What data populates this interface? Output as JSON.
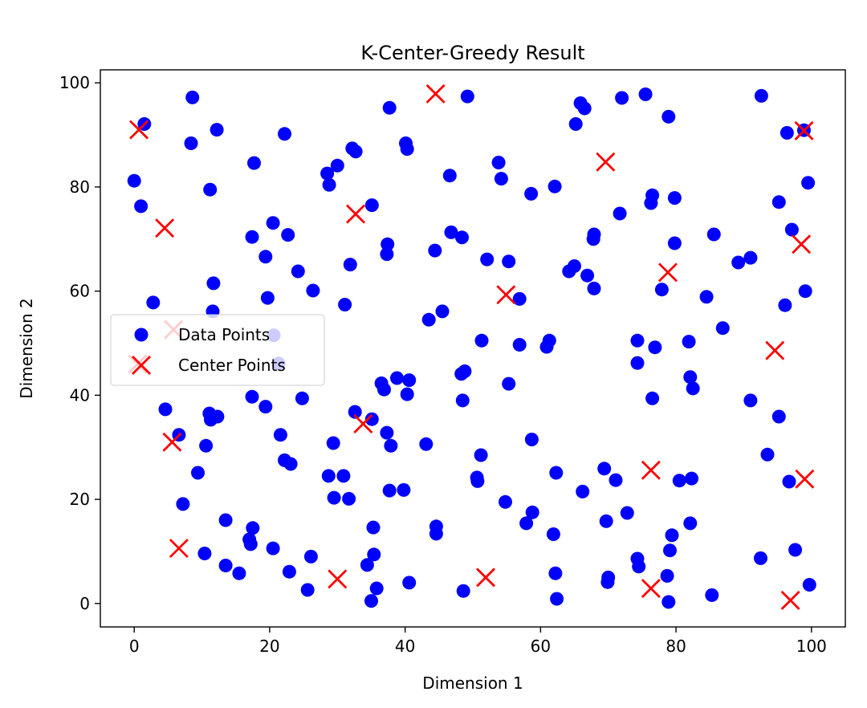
{
  "chart_data": {
    "type": "scatter",
    "title": "K-Center-Greedy Result",
    "xlabel": "Dimension 1",
    "ylabel": "Dimension 2",
    "xlim": [
      -5,
      105
    ],
    "ylim": [
      -4.5,
      102.5
    ],
    "xticks": [
      0,
      20,
      40,
      60,
      80,
      100
    ],
    "yticks": [
      0,
      20,
      40,
      60,
      80,
      100
    ],
    "grid": false,
    "legend": {
      "placement": "center-left",
      "entries": [
        "Data Points",
        "Center Points"
      ]
    },
    "series": [
      {
        "name": "Data Points",
        "marker": "circle",
        "color": "#0000ff",
        "points": [
          [
            0,
            81.2
          ],
          [
            1,
            76.3
          ],
          [
            1.5,
            92.1
          ],
          [
            8.6,
            97.2
          ],
          [
            8.4,
            88.4
          ],
          [
            12.2,
            91
          ],
          [
            11.2,
            79.5
          ],
          [
            2.8,
            57.8
          ],
          [
            11.7,
            61.5
          ],
          [
            11.6,
            56.1
          ],
          [
            17.7,
            84.6
          ],
          [
            22.2,
            90.2
          ],
          [
            17.4,
            70.4
          ],
          [
            20.5,
            73.1
          ],
          [
            22.7,
            70.8
          ],
          [
            19.4,
            66.6
          ],
          [
            24.2,
            63.8
          ],
          [
            19.7,
            58.7
          ],
          [
            26.4,
            60.1
          ],
          [
            28.5,
            82.6
          ],
          [
            28.8,
            80.4
          ],
          [
            30.0,
            84.1
          ],
          [
            32.2,
            87.4
          ],
          [
            32.7,
            86.8
          ],
          [
            35.1,
            76.5
          ],
          [
            37.4,
            69
          ],
          [
            37.3,
            67.1
          ],
          [
            31.9,
            65.1
          ],
          [
            31.1,
            57.4
          ],
          [
            37.7,
            95.2
          ],
          [
            40.1,
            88.4
          ],
          [
            40.3,
            87.3
          ],
          [
            46.6,
            82.2
          ],
          [
            44.4,
            67.8
          ],
          [
            46.8,
            71.3
          ],
          [
            48.4,
            70.3
          ],
          [
            49.2,
            97.4
          ],
          [
            53.8,
            84.7
          ],
          [
            54.2,
            81.6
          ],
          [
            58.6,
            78.7
          ],
          [
            62.1,
            80.1
          ],
          [
            52.1,
            66.1
          ],
          [
            55.3,
            65.7
          ],
          [
            56.9,
            58.5
          ],
          [
            45.5,
            56.1
          ],
          [
            43.5,
            54.5
          ],
          [
            51.3,
            50.5
          ],
          [
            56.9,
            49.7
          ],
          [
            61.3,
            50.5
          ],
          [
            60.9,
            49.3
          ],
          [
            48.3,
            44.1
          ],
          [
            48.8,
            44.6
          ],
          [
            48.5,
            39
          ],
          [
            55.3,
            42.2
          ],
          [
            58.7,
            31.5
          ],
          [
            43.1,
            30.6
          ],
          [
            40.6,
            42.9
          ],
          [
            40.3,
            40.2
          ],
          [
            38.8,
            43.3
          ],
          [
            36.5,
            42.3
          ],
          [
            36.9,
            41.1
          ],
          [
            37.3,
            32.8
          ],
          [
            37.9,
            30.3
          ],
          [
            35.1,
            35.4
          ],
          [
            32.6,
            36.8
          ],
          [
            29.4,
            30.8
          ],
          [
            28.7,
            24.5
          ],
          [
            30.9,
            24.5
          ],
          [
            29.5,
            20.3
          ],
          [
            31.7,
            20.1
          ],
          [
            37.7,
            21.7
          ],
          [
            39.8,
            21.8
          ],
          [
            24.8,
            39.4
          ],
          [
            21.6,
            32.4
          ],
          [
            22.2,
            27.5
          ],
          [
            23.1,
            26.8
          ],
          [
            17.4,
            39.7
          ],
          [
            19.4,
            37.8
          ],
          [
            11.1,
            36.5
          ],
          [
            11.3,
            35.3
          ],
          [
            12.3,
            35.9
          ],
          [
            10.6,
            30.3
          ],
          [
            6.6,
            32.4
          ],
          [
            4.6,
            37.3
          ],
          [
            9.4,
            25.1
          ],
          [
            7.2,
            19.1
          ],
          [
            13.5,
            16
          ],
          [
            17.5,
            14.5
          ],
          [
            17.0,
            12.3
          ],
          [
            17.2,
            11.4
          ],
          [
            20.5,
            10.6
          ],
          [
            10.4,
            9.6
          ],
          [
            13.5,
            7.3
          ],
          [
            15.5,
            5.8
          ],
          [
            22.9,
            6.1
          ],
          [
            25.6,
            2.6
          ],
          [
            26.1,
            9
          ],
          [
            35.3,
            14.6
          ],
          [
            35.4,
            9.4
          ],
          [
            34.4,
            7.4
          ],
          [
            35.8,
            2.9
          ],
          [
            35.0,
            0.5
          ],
          [
            40.6,
            4
          ],
          [
            44.6,
            14.8
          ],
          [
            44.6,
            13.4
          ],
          [
            48.6,
            2.4
          ],
          [
            50.6,
            24.2
          ],
          [
            50.7,
            23.5
          ],
          [
            51.2,
            28.5
          ],
          [
            54.8,
            19.5
          ],
          [
            58.8,
            17.5
          ],
          [
            57.9,
            15.4
          ],
          [
            61.9,
            13.3
          ],
          [
            62.3,
            25.1
          ],
          [
            62.2,
            5.8
          ],
          [
            62.4,
            0.9
          ],
          [
            66.2,
            21.5
          ],
          [
            69.4,
            25.9
          ],
          [
            69.7,
            15.8
          ],
          [
            70.0,
            5
          ],
          [
            69.9,
            4.1
          ],
          [
            71.1,
            23.7
          ],
          [
            72.8,
            17.4
          ],
          [
            74.3,
            8.6
          ],
          [
            74.5,
            7.1
          ],
          [
            78.7,
            5.3
          ],
          [
            78.9,
            0.3
          ],
          [
            79.1,
            10.2
          ],
          [
            79.4,
            13.1
          ],
          [
            80.5,
            23.6
          ],
          [
            82.1,
            15.4
          ],
          [
            82.3,
            24
          ],
          [
            85.3,
            1.6
          ],
          [
            76.5,
            39.4
          ],
          [
            76.9,
            49.2
          ],
          [
            74.3,
            50.5
          ],
          [
            74.3,
            46.2
          ],
          [
            81.9,
            50.3
          ],
          [
            82.1,
            43.5
          ],
          [
            82.5,
            41.3
          ],
          [
            84.5,
            58.9
          ],
          [
            86.9,
            52.9
          ],
          [
            91.0,
            39
          ],
          [
            93.5,
            28.6
          ],
          [
            95.2,
            35.9
          ],
          [
            96.7,
            23.4
          ],
          [
            97.6,
            10.3
          ],
          [
            92.5,
            8.7
          ],
          [
            96.1,
            57.3
          ],
          [
            99.1,
            60
          ],
          [
            97.1,
            71.8
          ],
          [
            99.5,
            80.8
          ],
          [
            95.2,
            77.1
          ],
          [
            96.4,
            90.4
          ],
          [
            98.9,
            90.9
          ],
          [
            92.6,
            97.5
          ],
          [
            89.2,
            65.5
          ],
          [
            91.0,
            66.4
          ],
          [
            85.6,
            70.9
          ],
          [
            79.8,
            69.2
          ],
          [
            79.8,
            77.9
          ],
          [
            76.3,
            76.9
          ],
          [
            76.5,
            78.4
          ],
          [
            71.7,
            74.9
          ],
          [
            77.9,
            60.3
          ],
          [
            78.9,
            93.5
          ],
          [
            75.5,
            97.8
          ],
          [
            72.0,
            97.1
          ],
          [
            65.2,
            92.1
          ],
          [
            65.9,
            96.1
          ],
          [
            66.5,
            95.1
          ],
          [
            64.2,
            63.8
          ],
          [
            65.0,
            64.8
          ],
          [
            66.9,
            63
          ],
          [
            67.9,
            70.9
          ],
          [
            67.8,
            70
          ],
          [
            67.9,
            60.5
          ],
          [
            99.7,
            3.6
          ],
          [
            20.6,
            51.5
          ],
          [
            21.3,
            46.1
          ]
        ]
      },
      {
        "name": "Center Points",
        "marker": "x",
        "color": "#ff0000",
        "points": [
          [
            0.7,
            91
          ],
          [
            4.5,
            72.1
          ],
          [
            5.8,
            52.6
          ],
          [
            0.5,
            46
          ],
          [
            32.7,
            74.8
          ],
          [
            44.5,
            97.9
          ],
          [
            54.9,
            59.3
          ],
          [
            69.6,
            84.8
          ],
          [
            78.8,
            63.6
          ],
          [
            98.9,
            90.8
          ],
          [
            98.5,
            69
          ],
          [
            94.6,
            48.6
          ],
          [
            33.8,
            34.5
          ],
          [
            5.6,
            31
          ],
          [
            76.3,
            25.6
          ],
          [
            99.0,
            23.9
          ],
          [
            6.6,
            10.6
          ],
          [
            30.0,
            4.7
          ],
          [
            51.9,
            5
          ],
          [
            76.3,
            2.9
          ],
          [
            96.9,
            0.6
          ]
        ]
      }
    ]
  }
}
